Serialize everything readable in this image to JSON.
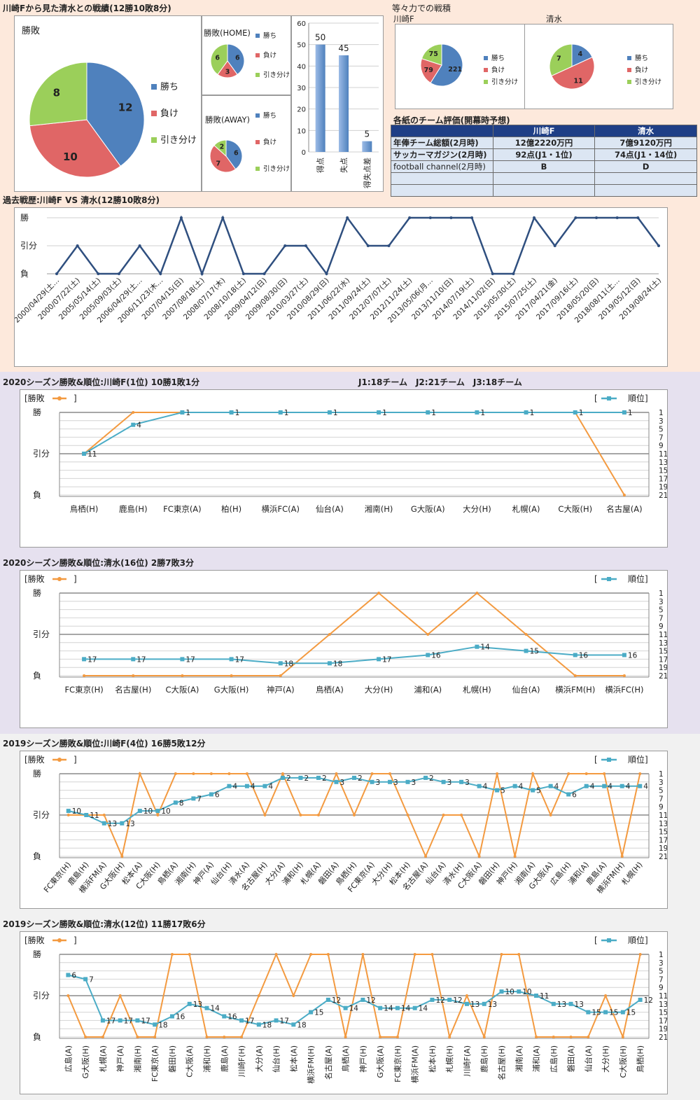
{
  "band1": {
    "title": "川崎Fから見た清水との戦績(12勝10敗8分)",
    "pie_main_label": "勝敗",
    "pie_home_label": "勝敗(HOME)",
    "pie_away_label": "勝敗(AWAY)",
    "legend": [
      "勝ち",
      "負け",
      "引き分け"
    ],
    "colors": {
      "win": "#4f81bd",
      "lose": "#e06666",
      "draw": "#9bcf5a",
      "band1_bg": "#fde9dc",
      "band2_bg": "#e6e1ef",
      "band3_bg": "#f1f1f1",
      "rank": "#4bacc6",
      "result": "#f39a40",
      "bar": "#4f81bd",
      "table_head": "#1f3f86"
    }
  },
  "ryoku": {
    "title": "等々力での戦積",
    "left_name": "川崎F",
    "right_name": "清水"
  },
  "eval_table": {
    "title": "各紙のチーム評価(開幕時予想)",
    "headers": [
      "",
      "川崎F",
      "清水"
    ],
    "rows": [
      [
        "年俸チーム総額(2月時)",
        "12億2220万円",
        "7億9120万円"
      ],
      [
        "サッカーマガジン(2月時)",
        "92点(J1・1位)",
        "74点(J1・14位)"
      ],
      [
        "football channel(2月時)",
        "B",
        "D"
      ],
      [
        "",
        "",
        ""
      ],
      [
        "",
        "",
        ""
      ]
    ]
  },
  "history": {
    "title": "過去戦歴:川崎F VS 清水(12勝10敗8分)",
    "ylabels": [
      "勝",
      "引分",
      "負"
    ]
  },
  "season_titles": {
    "s1": "2020シーズン勝敗&順位:川崎F(1位) 10勝1敗1分",
    "s1_note": "J1:18チーム　J2:21チーム　J3:18チーム",
    "s2": "2020シーズン勝敗&順位:清水(16位) 2勝7敗3分",
    "s3": "2019シーズン勝敗&順位:川崎F(4位) 16勝5敗12分",
    "s4": "2019シーズン勝敗&順位:清水(12位) 11勝17敗6分"
  },
  "chart_data": [
    {
      "type": "pie",
      "title": "勝敗",
      "categories": [
        "勝ち",
        "負け",
        "引き分け"
      ],
      "values": [
        12,
        10,
        8
      ]
    },
    {
      "type": "pie",
      "title": "勝敗(HOME)",
      "categories": [
        "勝ち",
        "負け",
        "引き分け"
      ],
      "values": [
        6,
        3,
        6
      ]
    },
    {
      "type": "pie",
      "title": "勝敗(AWAY)",
      "categories": [
        "勝ち",
        "負け",
        "引き分け"
      ],
      "values": [
        6,
        7,
        2
      ]
    },
    {
      "type": "bar",
      "categories": [
        "得点",
        "失点",
        "得失点差"
      ],
      "values": [
        50,
        45,
        5
      ],
      "ylim": [
        0,
        60
      ],
      "yticks": [
        0,
        10,
        20,
        30,
        40,
        50,
        60
      ]
    },
    {
      "type": "pie",
      "title": "川崎F",
      "categories": [
        "勝ち",
        "負け",
        "引き分け"
      ],
      "values": [
        221,
        79,
        75
      ]
    },
    {
      "type": "pie",
      "title": "清水",
      "categories": [
        "勝ち",
        "負け",
        "引き分け"
      ],
      "values": [
        4,
        11,
        7
      ]
    },
    {
      "type": "line",
      "title": "過去戦歴:川崎F VS 清水(12勝10敗8分)",
      "ylabels": [
        "勝",
        "引分",
        "負"
      ],
      "x": [
        "2000/04/29(土…",
        "2000/07/22(土)",
        "2005/05/14(土)",
        "2005/09/03(土)",
        "2006/04/29(土…",
        "2006/11/23(木…",
        "2007/04/15(日)",
        "2007/08/18(土)",
        "2008/07/17(木)",
        "2008/10/18(土)",
        "2009/04/12(日)",
        "2009/08/30(日)",
        "2010/03/27(土)",
        "2010/08/29(日)",
        "2011/06/22(水)",
        "2011/09/24(土)",
        "2012/07/07(土)",
        "2012/11/24(土)",
        "2013/05/06(月…",
        "2013/11/10(日)",
        "2014/07/19(土)",
        "2014/11/02(日)",
        "2015/05/30(土)",
        "2015/07/25(土)",
        "2017/04/21(金)",
        "2017/09/16(土)",
        "2018/05/20(日)",
        "2018/08/11(土…",
        "2019/05/12(日)",
        "2019/08/24(土)"
      ],
      "series": [
        {
          "values": [
            "負",
            "引分",
            "負",
            "負",
            "引分",
            "負",
            "勝",
            "負",
            "勝",
            "負",
            "負",
            "引分",
            "引分",
            "負",
            "勝",
            "引分",
            "引分",
            "勝",
            "勝",
            "勝",
            "勝",
            "負",
            "負",
            "勝",
            "引分",
            "勝",
            "勝",
            "勝",
            "勝",
            "引分"
          ]
        }
      ]
    },
    {
      "type": "line",
      "title": "2020シーズン勝敗&順位:川崎F(1位) 10勝1敗1分",
      "legend": [
        "勝敗",
        "順位"
      ],
      "x": [
        "鳥栖(H)",
        "鹿島(H)",
        "FC東京(A)",
        "柏(H)",
        "横浜FC(A)",
        "仙台(A)",
        "湘南(H)",
        "G大阪(A)",
        "大分(H)",
        "札幌(A)",
        "C大阪(H)",
        "名古屋(A)"
      ],
      "ylabels": [
        "勝",
        "引分",
        "負"
      ],
      "rank_ticks": [
        1,
        3,
        5,
        7,
        9,
        11,
        13,
        15,
        17,
        19,
        21
      ],
      "series": [
        {
          "name": "勝敗",
          "values": [
            "引分",
            "勝",
            "勝",
            "勝",
            "勝",
            "勝",
            "勝",
            "勝",
            "勝",
            "勝",
            "勝",
            "負"
          ]
        },
        {
          "name": "順位",
          "values": [
            11,
            4,
            1,
            1,
            1,
            1,
            1,
            1,
            1,
            1,
            1,
            1
          ]
        }
      ]
    },
    {
      "type": "line",
      "title": "2020シーズン勝敗&順位:清水(16位) 2勝7敗3分",
      "legend": [
        "勝敗",
        "順位"
      ],
      "x": [
        "FC東京(H)",
        "名古屋(H)",
        "C大阪(A)",
        "G大阪(H)",
        "神戸(A)",
        "鳥栖(A)",
        "大分(H)",
        "浦和(A)",
        "札幌(H)",
        "仙台(A)",
        "横浜FM(H)",
        "横浜FC(H)"
      ],
      "ylabels": [
        "勝",
        "引分",
        "負"
      ],
      "rank_ticks": [
        1,
        3,
        5,
        7,
        9,
        11,
        13,
        15,
        17,
        19,
        21
      ],
      "series": [
        {
          "name": "勝敗",
          "values": [
            "負",
            "負",
            "負",
            "負",
            "負",
            "引分",
            "勝",
            "引分",
            "勝",
            "引分",
            "負",
            "負"
          ]
        },
        {
          "name": "順位",
          "values": [
            17,
            17,
            17,
            17,
            18,
            18,
            17,
            16,
            14,
            15,
            16,
            16
          ]
        }
      ]
    },
    {
      "type": "line",
      "title": "2019シーズン勝敗&順位:川崎F(4位) 16勝5敗12分",
      "legend": [
        "勝敗",
        "順位"
      ],
      "x": [
        "FC東京(H)",
        "鹿島(H)",
        "横浜FM(A)",
        "G大阪(H)",
        "松本(A)",
        "C大阪(H)",
        "鳥栖(A)",
        "湘南(H)",
        "神戸(A)",
        "仙台(H)",
        "清水(A)",
        "名古屋(H)",
        "大分(A)",
        "浦和(H)",
        "札幌(A)",
        "磐田(A)",
        "鳥栖(H)",
        "FC東京(A)",
        "大分(H)",
        "松本(H)",
        "名古屋(A)",
        "仙台(A)",
        "清水(H)",
        "C大阪(A)",
        "磐田(H)",
        "神戸(H)",
        "湘南(A)",
        "G大阪(A)",
        "広島(H)",
        "浦和(A)",
        "鹿島(A)",
        "横浜FM(H)",
        "札幌(H)"
      ],
      "ylabels": [
        "勝",
        "引分",
        "負"
      ],
      "rank_ticks": [
        1,
        3,
        5,
        7,
        9,
        11,
        13,
        15,
        17,
        19,
        21
      ],
      "series": [
        {
          "name": "勝敗",
          "values": [
            "引分",
            "引分",
            "引分",
            "負",
            "勝",
            "引分",
            "勝",
            "勝",
            "勝",
            "勝",
            "勝",
            "引分",
            "勝",
            "引分",
            "引分",
            "勝",
            "引分",
            "勝",
            "勝",
            "引分",
            "負",
            "引分",
            "引分",
            "負",
            "勝",
            "負",
            "勝",
            "引分",
            "勝",
            "勝",
            "勝",
            "負",
            "勝"
          ]
        },
        {
          "name": "順位",
          "values": [
            10,
            11,
            13,
            13,
            10,
            10,
            8,
            7,
            6,
            4,
            4,
            4,
            2,
            2,
            2,
            3,
            2,
            3,
            3,
            3,
            2,
            3,
            3,
            4,
            5,
            4,
            5,
            4,
            6,
            4,
            4,
            4,
            4
          ]
        }
      ]
    },
    {
      "type": "line",
      "title": "2019シーズン勝敗&順位:清水(12位) 11勝17敗6分",
      "legend": [
        "勝敗",
        "順位"
      ],
      "x": [
        "広島(A)",
        "G大阪(H)",
        "札幌(A)",
        "神戸(A)",
        "湘南(H)",
        "FC東京(A)",
        "磐田(H)",
        "C大阪(A)",
        "浦和(H)",
        "鹿島(A)",
        "川崎F(H)",
        "大分(A)",
        "仙台(H)",
        "松本(A)",
        "横浜FM(H)",
        "名古屋(A)",
        "鳥栖(A)",
        "神戸(H)",
        "G大阪(A)",
        "FC東京(H)",
        "横浜FM(A)",
        "松本(H)",
        "札幌(H)",
        "川崎F(A)",
        "鹿島(H)",
        "名古屋(H)",
        "湘南(A)",
        "浦和(A)",
        "広島(H)",
        "磐田(A)",
        "仙台(A)",
        "大分(H)",
        "C大阪(H)",
        "鳥栖(H)"
      ],
      "ylabels": [
        "勝",
        "引分",
        "負"
      ],
      "rank_ticks": [
        1,
        3,
        5,
        7,
        9,
        11,
        13,
        15,
        17,
        19,
        21
      ],
      "series": [
        {
          "name": "勝敗",
          "values": [
            "引分",
            "負",
            "負",
            "引分",
            "負",
            "負",
            "勝",
            "勝",
            "負",
            "負",
            "負",
            "引分",
            "勝",
            "引分",
            "勝",
            "勝",
            "負",
            "勝",
            "負",
            "負",
            "勝",
            "勝",
            "負",
            "引分",
            "負",
            "勝",
            "勝",
            "負",
            "負",
            "負",
            "負",
            "引分",
            "負",
            "勝"
          ]
        },
        {
          "name": "順位",
          "values": [
            6,
            7,
            17,
            17,
            17,
            18,
            16,
            13,
            14,
            16,
            17,
            18,
            17,
            18,
            15,
            12,
            14,
            12,
            14,
            14,
            14,
            12,
            12,
            13,
            13,
            10,
            10,
            11,
            13,
            13,
            15,
            15,
            15,
            12
          ]
        }
      ]
    }
  ]
}
